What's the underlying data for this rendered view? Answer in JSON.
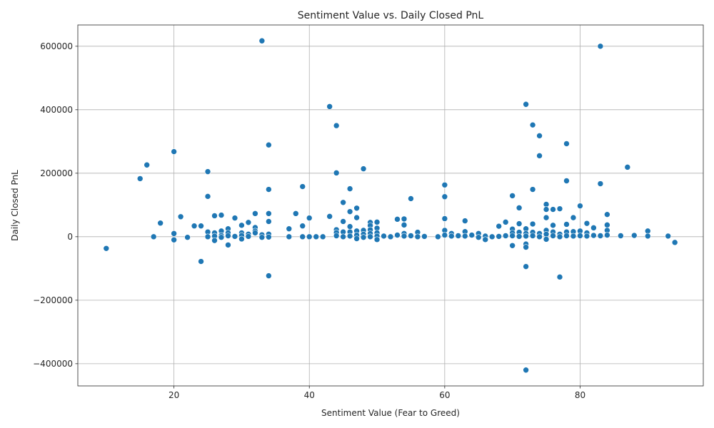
{
  "chart_data": {
    "type": "scatter",
    "title": "Sentiment Value vs. Daily Closed PnL",
    "xlabel": "Sentiment Value (Fear to Greed)",
    "ylabel": "Daily Closed PnL",
    "xlim": [
      5.8,
      98.2
    ],
    "ylim": [
      -470000,
      667000
    ],
    "x_ticks": [
      20,
      40,
      60,
      80
    ],
    "x_tick_labels": [
      "20",
      "40",
      "60",
      "80"
    ],
    "y_ticks": [
      -400000,
      -200000,
      0,
      200000,
      400000,
      600000
    ],
    "y_tick_labels": [
      "−400000",
      "−200000",
      "0",
      "200000",
      "400000",
      "600000"
    ],
    "grid": true,
    "legend": "none",
    "marker_color": "#1f77b4",
    "marker_edge": "#ffffff",
    "points": [
      {
        "x": 10,
        "y": -37000
      },
      {
        "x": 15,
        "y": 183000
      },
      {
        "x": 16,
        "y": 226000
      },
      {
        "x": 17,
        "y": 0
      },
      {
        "x": 18,
        "y": 43000
      },
      {
        "x": 20,
        "y": 268000
      },
      {
        "x": 20,
        "y": 10000
      },
      {
        "x": 20,
        "y": -10000
      },
      {
        "x": 21,
        "y": 63000
      },
      {
        "x": 22,
        "y": -2000
      },
      {
        "x": 23,
        "y": 34000
      },
      {
        "x": 24,
        "y": 34000
      },
      {
        "x": 24,
        "y": -78000
      },
      {
        "x": 25,
        "y": 205000
      },
      {
        "x": 25,
        "y": 127000
      },
      {
        "x": 25,
        "y": 15000
      },
      {
        "x": 25,
        "y": 0
      },
      {
        "x": 26,
        "y": 66000
      },
      {
        "x": 26,
        "y": 12000
      },
      {
        "x": 26,
        "y": 2000
      },
      {
        "x": 26,
        "y": -12000
      },
      {
        "x": 27,
        "y": 68000
      },
      {
        "x": 27,
        "y": 18000
      },
      {
        "x": 27,
        "y": 4000
      },
      {
        "x": 27,
        "y": -2000
      },
      {
        "x": 28,
        "y": 25000
      },
      {
        "x": 28,
        "y": 12000
      },
      {
        "x": 28,
        "y": 3000
      },
      {
        "x": 28,
        "y": -26000
      },
      {
        "x": 29,
        "y": 59000
      },
      {
        "x": 29,
        "y": 1000
      },
      {
        "x": 30,
        "y": 36000
      },
      {
        "x": 30,
        "y": 12000
      },
      {
        "x": 30,
        "y": 4000
      },
      {
        "x": 30,
        "y": -7000
      },
      {
        "x": 31,
        "y": 45000
      },
      {
        "x": 31,
        "y": 8000
      },
      {
        "x": 31,
        "y": 1000
      },
      {
        "x": 32,
        "y": 73000
      },
      {
        "x": 32,
        "y": 29000
      },
      {
        "x": 32,
        "y": 18000
      },
      {
        "x": 32,
        "y": 12000
      },
      {
        "x": 33,
        "y": 617000
      },
      {
        "x": 33,
        "y": 6000
      },
      {
        "x": 33,
        "y": -2000
      },
      {
        "x": 34,
        "y": 289000
      },
      {
        "x": 34,
        "y": 149000
      },
      {
        "x": 34,
        "y": 73000
      },
      {
        "x": 34,
        "y": 48000
      },
      {
        "x": 34,
        "y": 8000
      },
      {
        "x": 34,
        "y": -1000
      },
      {
        "x": 34,
        "y": -123000
      },
      {
        "x": 37,
        "y": 25000
      },
      {
        "x": 37,
        "y": 0
      },
      {
        "x": 38,
        "y": 73000
      },
      {
        "x": 39,
        "y": 158000
      },
      {
        "x": 39,
        "y": 34000
      },
      {
        "x": 39,
        "y": 0
      },
      {
        "x": 40,
        "y": 59000
      },
      {
        "x": 40,
        "y": 0
      },
      {
        "x": 41,
        "y": 0
      },
      {
        "x": 42,
        "y": 0
      },
      {
        "x": 43,
        "y": 410000
      },
      {
        "x": 43,
        "y": 64000
      },
      {
        "x": 44,
        "y": 350000
      },
      {
        "x": 44,
        "y": 201000
      },
      {
        "x": 44,
        "y": 22000
      },
      {
        "x": 44,
        "y": 13000
      },
      {
        "x": 44,
        "y": 3000
      },
      {
        "x": 45,
        "y": 108000
      },
      {
        "x": 45,
        "y": 48000
      },
      {
        "x": 45,
        "y": 15000
      },
      {
        "x": 45,
        "y": 0
      },
      {
        "x": 46,
        "y": 151000
      },
      {
        "x": 46,
        "y": 79000
      },
      {
        "x": 46,
        "y": 32000
      },
      {
        "x": 46,
        "y": 15000
      },
      {
        "x": 46,
        "y": 2000
      },
      {
        "x": 47,
        "y": 90000
      },
      {
        "x": 47,
        "y": 60000
      },
      {
        "x": 47,
        "y": 18000
      },
      {
        "x": 47,
        "y": 5000
      },
      {
        "x": 47,
        "y": -6000
      },
      {
        "x": 48,
        "y": 214000
      },
      {
        "x": 48,
        "y": 20000
      },
      {
        "x": 48,
        "y": 8000
      },
      {
        "x": 48,
        "y": -2000
      },
      {
        "x": 49,
        "y": 45000
      },
      {
        "x": 49,
        "y": 35000
      },
      {
        "x": 49,
        "y": 22000
      },
      {
        "x": 49,
        "y": 10000
      },
      {
        "x": 49,
        "y": 0
      },
      {
        "x": 50,
        "y": 46000
      },
      {
        "x": 50,
        "y": 27000
      },
      {
        "x": 50,
        "y": 12000
      },
      {
        "x": 50,
        "y": 2000
      },
      {
        "x": 50,
        "y": -9000
      },
      {
        "x": 51,
        "y": 2000
      },
      {
        "x": 52,
        "y": 0
      },
      {
        "x": 53,
        "y": 55000
      },
      {
        "x": 53,
        "y": 5000
      },
      {
        "x": 54,
        "y": 56000
      },
      {
        "x": 54,
        "y": 37000
      },
      {
        "x": 54,
        "y": 10000
      },
      {
        "x": 54,
        "y": 2000
      },
      {
        "x": 55,
        "y": 120000
      },
      {
        "x": 55,
        "y": 3000
      },
      {
        "x": 56,
        "y": 14000
      },
      {
        "x": 56,
        "y": 0
      },
      {
        "x": 57,
        "y": 1000
      },
      {
        "x": 59,
        "y": 0
      },
      {
        "x": 60,
        "y": 163000
      },
      {
        "x": 60,
        "y": 126000
      },
      {
        "x": 60,
        "y": 57000
      },
      {
        "x": 60,
        "y": 20000
      },
      {
        "x": 60,
        "y": 5000
      },
      {
        "x": 61,
        "y": 10000
      },
      {
        "x": 61,
        "y": 2000
      },
      {
        "x": 62,
        "y": 3000
      },
      {
        "x": 63,
        "y": 50000
      },
      {
        "x": 63,
        "y": 16000
      },
      {
        "x": 63,
        "y": 2000
      },
      {
        "x": 64,
        "y": 5000
      },
      {
        "x": 65,
        "y": 10000
      },
      {
        "x": 65,
        "y": -2000
      },
      {
        "x": 66,
        "y": 2000
      },
      {
        "x": 66,
        "y": -9000
      },
      {
        "x": 67,
        "y": 0
      },
      {
        "x": 68,
        "y": 33000
      },
      {
        "x": 68,
        "y": 1000
      },
      {
        "x": 69,
        "y": 46000
      },
      {
        "x": 69,
        "y": 3000
      },
      {
        "x": 70,
        "y": 129000
      },
      {
        "x": 70,
        "y": 24000
      },
      {
        "x": 70,
        "y": 12000
      },
      {
        "x": 70,
        "y": 3000
      },
      {
        "x": 70,
        "y": -28000
      },
      {
        "x": 71,
        "y": 91000
      },
      {
        "x": 71,
        "y": 41000
      },
      {
        "x": 71,
        "y": 14000
      },
      {
        "x": 71,
        "y": 1000
      },
      {
        "x": 72,
        "y": 417000
      },
      {
        "x": 72,
        "y": 25000
      },
      {
        "x": 72,
        "y": 10000
      },
      {
        "x": 72,
        "y": 2000
      },
      {
        "x": 72,
        "y": -23000
      },
      {
        "x": 72,
        "y": -33000
      },
      {
        "x": 72,
        "y": -94000
      },
      {
        "x": 72,
        "y": -420000
      },
      {
        "x": 73,
        "y": 352000
      },
      {
        "x": 73,
        "y": 149000
      },
      {
        "x": 73,
        "y": 40000
      },
      {
        "x": 73,
        "y": 14000
      },
      {
        "x": 73,
        "y": 3000
      },
      {
        "x": 74,
        "y": 318000
      },
      {
        "x": 74,
        "y": 255000
      },
      {
        "x": 74,
        "y": 10000
      },
      {
        "x": 74,
        "y": 0
      },
      {
        "x": 75,
        "y": 102000
      },
      {
        "x": 75,
        "y": 86000
      },
      {
        "x": 75,
        "y": 60000
      },
      {
        "x": 75,
        "y": 20000
      },
      {
        "x": 75,
        "y": 8000
      },
      {
        "x": 75,
        "y": -8000
      },
      {
        "x": 76,
        "y": 86000
      },
      {
        "x": 76,
        "y": 36000
      },
      {
        "x": 76,
        "y": 15000
      },
      {
        "x": 76,
        "y": 3000
      },
      {
        "x": 77,
        "y": 88000
      },
      {
        "x": 77,
        "y": 8000
      },
      {
        "x": 77,
        "y": 0
      },
      {
        "x": 77,
        "y": -127000
      },
      {
        "x": 78,
        "y": 293000
      },
      {
        "x": 78,
        "y": 176000
      },
      {
        "x": 78,
        "y": 39000
      },
      {
        "x": 78,
        "y": 15000
      },
      {
        "x": 78,
        "y": 3000
      },
      {
        "x": 79,
        "y": 60000
      },
      {
        "x": 79,
        "y": 16000
      },
      {
        "x": 79,
        "y": 2000
      },
      {
        "x": 80,
        "y": 97000
      },
      {
        "x": 80,
        "y": 18000
      },
      {
        "x": 80,
        "y": 3000
      },
      {
        "x": 81,
        "y": 42000
      },
      {
        "x": 81,
        "y": 12000
      },
      {
        "x": 81,
        "y": 2000
      },
      {
        "x": 82,
        "y": 28000
      },
      {
        "x": 82,
        "y": 4000
      },
      {
        "x": 83,
        "y": 600000
      },
      {
        "x": 83,
        "y": 167000
      },
      {
        "x": 83,
        "y": 3000
      },
      {
        "x": 84,
        "y": 70000
      },
      {
        "x": 84,
        "y": 37000
      },
      {
        "x": 84,
        "y": 20000
      },
      {
        "x": 84,
        "y": 5000
      },
      {
        "x": 86,
        "y": 3000
      },
      {
        "x": 87,
        "y": 219000
      },
      {
        "x": 88,
        "y": 4000
      },
      {
        "x": 90,
        "y": 18000
      },
      {
        "x": 90,
        "y": 2000
      },
      {
        "x": 93,
        "y": 2000
      },
      {
        "x": 94,
        "y": -18000
      }
    ]
  }
}
